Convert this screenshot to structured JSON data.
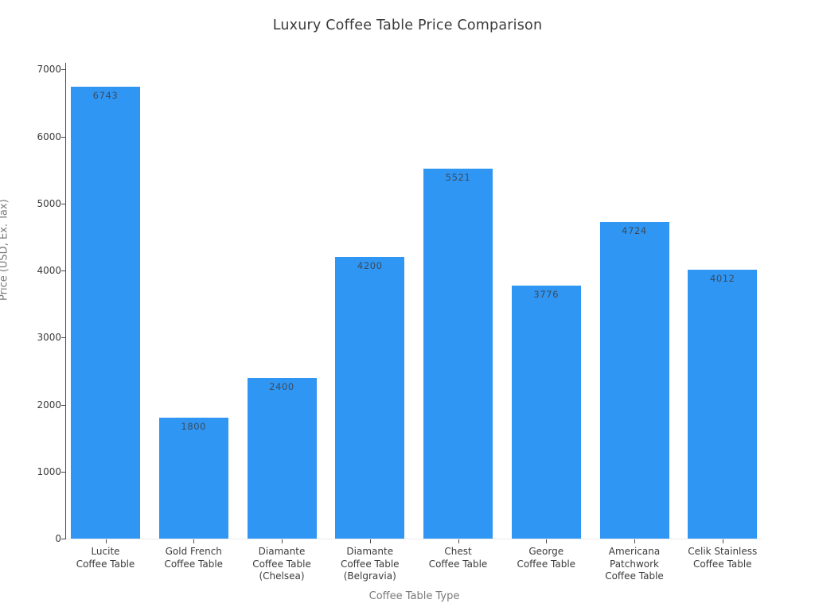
{
  "title": "Luxury Coffee Table Price Comparison",
  "chart_data": {
    "type": "bar",
    "title": "Luxury Coffee Table Price Comparison",
    "xlabel": "Coffee Table Type",
    "ylabel": "Price (USD, Ex. Tax)",
    "categories": [
      "Lucite\nCoffee Table",
      "Gold French\nCoffee Table",
      "Diamante\nCoffee Table\n(Chelsea)",
      "Diamante\nCoffee Table\n(Belgravia)",
      "Chest\nCoffee Table",
      "George\nCoffee Table",
      "Americana\nPatchwork\nCoffee Table",
      "Celik Stainless\nCoffee Table"
    ],
    "values": [
      6743,
      1800,
      2400,
      4200,
      5521,
      3776,
      4724,
      4012
    ],
    "value_labels": [
      "6743",
      "1800",
      "2400",
      "4200",
      "5521",
      "3776",
      "4724",
      "4012"
    ],
    "yticks": [
      0,
      1000,
      2000,
      3000,
      4000,
      5000,
      6000,
      7000
    ],
    "ytick_labels": [
      "0",
      "1000",
      "2000",
      "3000",
      "4000",
      "5000",
      "6000",
      "7000"
    ],
    "ylim": [
      0,
      7100
    ],
    "grid": false,
    "legend": false,
    "bar_color": "#2f96f4",
    "value_label_color": "#3d4a5c",
    "axis_line_color": "#4a4a4a",
    "tick_label_color": "#3b3b3b",
    "axis_title_color": "#7a7a7a",
    "background_color": "#ffffff"
  }
}
